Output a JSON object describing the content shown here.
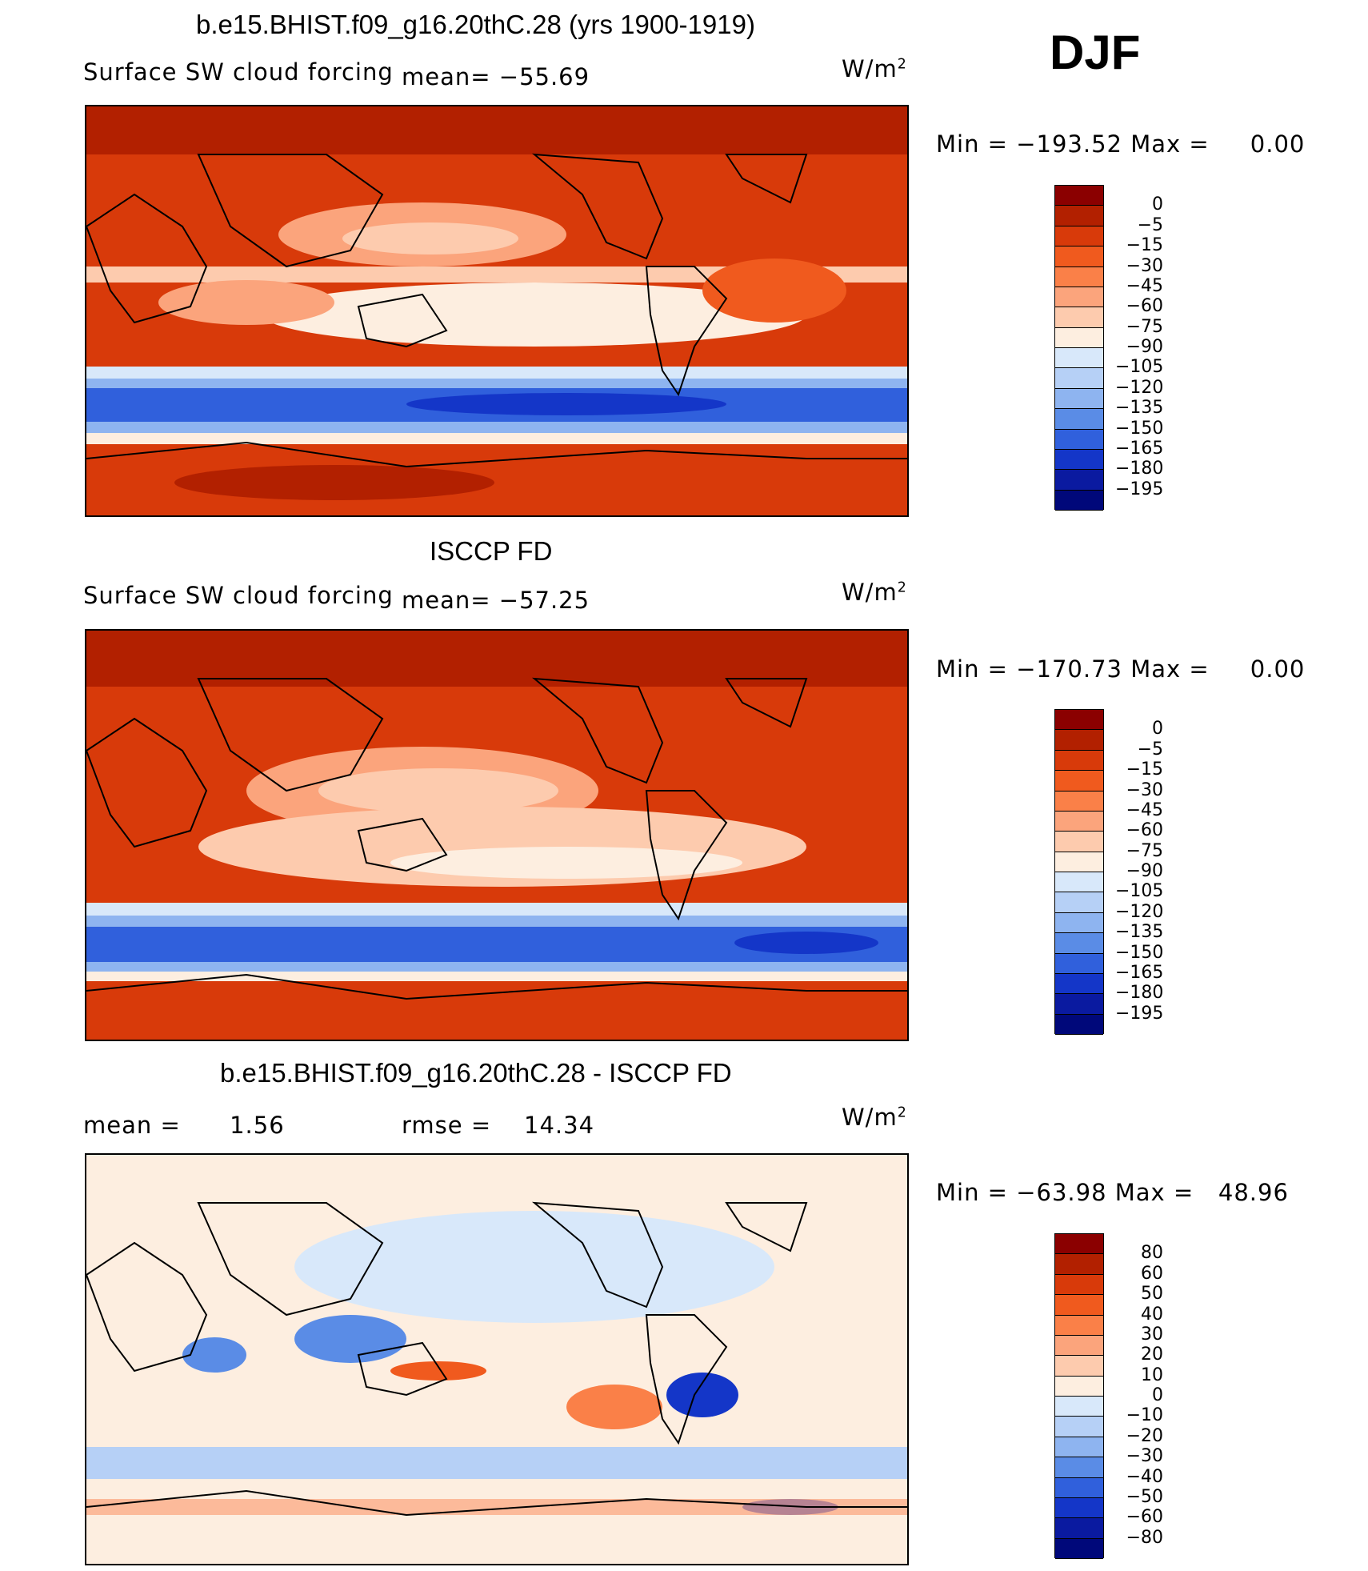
{
  "season": "DJF",
  "panels": [
    {
      "title": "b.e15.BHIST.f09_g16.20thC.28 (yrs 1900-1919)",
      "left_label": "Surface SW cloud forcing",
      "mean_label": "mean=",
      "mean_value": "−55.69",
      "units": "W/m",
      "units_exp": "2",
      "min_label": "Min",
      "min_value": "−193.52",
      "max_label": "Max",
      "max_value": "0.00",
      "colorbar_labels": [
        "0",
        "−5",
        "−15",
        "−30",
        "−45",
        "−60",
        "−75",
        "−90",
        "−105",
        "−120",
        "−135",
        "−150",
        "−165",
        "−180",
        "−195"
      ],
      "colorbar_colors": [
        "#8b0000",
        "#b22000",
        "#d83a0a",
        "#f05a1e",
        "#fa8048",
        "#fba47c",
        "#fdcbae",
        "#fdeee0",
        "#d8e8fa",
        "#b6d0f6",
        "#8eb4f0",
        "#5a8ce6",
        "#3060dc",
        "#1436c8",
        "#0a1aa0",
        "#00087a"
      ]
    },
    {
      "title": "ISCCP FD",
      "left_label": "Surface SW cloud forcing",
      "mean_label": "mean=",
      "mean_value": "−57.25",
      "units": "W/m",
      "units_exp": "2",
      "min_label": "Min",
      "min_value": "−170.73",
      "max_label": "Max",
      "max_value": "0.00",
      "colorbar_labels": [
        "0",
        "−5",
        "−15",
        "−30",
        "−45",
        "−60",
        "−75",
        "−90",
        "−105",
        "−120",
        "−135",
        "−150",
        "−165",
        "−180",
        "−195"
      ],
      "colorbar_colors": [
        "#8b0000",
        "#b22000",
        "#d83a0a",
        "#f05a1e",
        "#fa8048",
        "#fba47c",
        "#fdcbae",
        "#fdeee0",
        "#d8e8fa",
        "#b6d0f6",
        "#8eb4f0",
        "#5a8ce6",
        "#3060dc",
        "#1436c8",
        "#0a1aa0",
        "#00087a"
      ]
    },
    {
      "title": "b.e15.BHIST.f09_g16.20thC.28 - ISCCP FD",
      "mean_label": "mean =",
      "mean_value": "1.56",
      "rmse_label": "rmse =",
      "rmse_value": "14.34",
      "units": "W/m",
      "units_exp": "2",
      "min_label": "Min",
      "min_value": "−63.98",
      "max_label": "Max",
      "max_value": "48.96",
      "colorbar_labels": [
        "80",
        "60",
        "50",
        "40",
        "30",
        "20",
        "10",
        "0",
        "−10",
        "−20",
        "−30",
        "−40",
        "−50",
        "−60",
        "−80"
      ],
      "colorbar_colors": [
        "#8b0000",
        "#b22000",
        "#d83a0a",
        "#f05a1e",
        "#fa8048",
        "#fba47c",
        "#fdcbae",
        "#fdeee0",
        "#d8e8fa",
        "#b6d0f6",
        "#8eb4f0",
        "#5a8ce6",
        "#3060dc",
        "#1436c8",
        "#0a1aa0",
        "#00087a"
      ]
    }
  ]
}
